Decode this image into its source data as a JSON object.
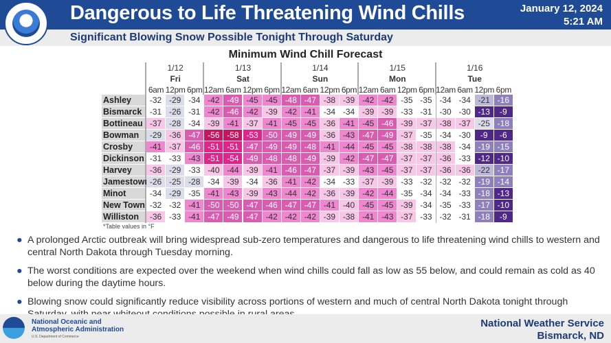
{
  "header": {
    "title": "Dangerous to Life Threatening Wind Chills",
    "date": "January 12, 2024",
    "time": "5:21 AM",
    "subtitle": "Significant Blowing Snow Possible Tonight Through Saturday",
    "logo_text": "NATIONAL WEATHER SERVICE"
  },
  "table": {
    "title": "Minimum Wind Chill Forecast",
    "days": [
      {
        "date": "1/12",
        "day": "Fri",
        "times": [
          "6am",
          "12pm",
          "6pm"
        ]
      },
      {
        "date": "1/13",
        "day": "Sat",
        "times": [
          "12am",
          "6am",
          "12pm",
          "6pm"
        ]
      },
      {
        "date": "1/14",
        "day": "Sun",
        "times": [
          "12am",
          "6am",
          "12pm",
          "6pm"
        ]
      },
      {
        "date": "1/15",
        "day": "Mon",
        "times": [
          "12am",
          "6am",
          "12pm",
          "6pm"
        ]
      },
      {
        "date": "1/16",
        "day": "Tue",
        "times": [
          "12am",
          "6am",
          "12pm",
          "6pm"
        ]
      }
    ],
    "rows": [
      {
        "name": "Ashley",
        "values": [
          -32,
          -29,
          -34,
          -42,
          -49,
          -45,
          -45,
          -48,
          -47,
          -38,
          -39,
          -42,
          -42,
          -35,
          -35,
          -34,
          -34,
          -21,
          -16
        ]
      },
      {
        "name": "Bismarck",
        "values": [
          -31,
          -26,
          -31,
          -42,
          -46,
          -42,
          -39,
          -42,
          -41,
          -34,
          -34,
          -39,
          -39,
          -33,
          -31,
          -30,
          -30,
          -13,
          -9
        ]
      },
      {
        "name": "Bottineau",
        "values": [
          -37,
          -28,
          -34,
          -39,
          -41,
          -37,
          -41,
          -45,
          -45,
          -36,
          -41,
          -45,
          -46,
          -39,
          -37,
          -38,
          -37,
          -25,
          -18
        ]
      },
      {
        "name": "Bowman",
        "values": [
          -29,
          -36,
          -47,
          -56,
          -58,
          -53,
          -50,
          -49,
          -49,
          -36,
          -43,
          -47,
          -49,
          -37,
          -35,
          -34,
          -30,
          -9,
          -6
        ]
      },
      {
        "name": "Crosby",
        "values": [
          -41,
          -37,
          -46,
          -51,
          -51,
          -47,
          -49,
          -49,
          -48,
          -41,
          -44,
          -45,
          -45,
          -38,
          -38,
          -38,
          -34,
          -19,
          -15
        ]
      },
      {
        "name": "Dickinson",
        "values": [
          -31,
          -33,
          -43,
          -51,
          -54,
          -49,
          -48,
          -48,
          -49,
          -39,
          -42,
          -47,
          -47,
          -37,
          -37,
          -36,
          -33,
          -12,
          -10
        ]
      },
      {
        "name": "Harvey",
        "values": [
          -36,
          -29,
          -33,
          -40,
          -44,
          -39,
          -41,
          -46,
          -47,
          -37,
          -39,
          -43,
          -45,
          -37,
          -37,
          -36,
          -36,
          -22,
          -17
        ]
      },
      {
        "name": "Jamestown",
        "values": [
          -26,
          -25,
          -28,
          -34,
          -39,
          -34,
          -36,
          -41,
          -42,
          -34,
          -33,
          -37,
          -39,
          -33,
          -32,
          -32,
          -32,
          -19,
          -14
        ]
      },
      {
        "name": "Minot",
        "values": [
          -34,
          -29,
          -35,
          -41,
          -43,
          -39,
          -43,
          -44,
          -42,
          -36,
          -39,
          -42,
          -44,
          -35,
          -34,
          -34,
          -33,
          -18,
          -13
        ]
      },
      {
        "name": "New Town",
        "values": [
          -32,
          -32,
          -41,
          -50,
          -50,
          -47,
          -46,
          -47,
          -47,
          -41,
          -40,
          -45,
          -45,
          -39,
          -34,
          -35,
          -33,
          -17,
          -10
        ]
      },
      {
        "name": "Williston",
        "values": [
          -36,
          -33,
          -41,
          -47,
          -49,
          -47,
          -42,
          -42,
          -42,
          -39,
          -38,
          -41,
          -43,
          -37,
          -33,
          -32,
          -31,
          -18,
          -9
        ]
      }
    ],
    "note": "*Table values in °F"
  },
  "bullets": [
    "A prolonged Arctic outbreak will bring widespread sub-zero temperatures and dangerous to life threatening wind chills to western and central North Dakota through Tuesday morning.",
    "The worst conditions are expected over the weekend when wind chills could fall as low as 55 below, and could remain as cold as 40 below during the daytime hours.",
    "Blowing snow could significantly reduce visibility across portions of western and much of central North Dakota tonight through Saturday, with near whiteout conditions possible in rural areas."
  ],
  "footer": {
    "noaa_line1": "National Oceanic and",
    "noaa_line2": "Atmospheric Administration",
    "noaa_line3": "U.S. Department of Commerce",
    "nws": "National Weather Service",
    "office": "Bismarck, ND"
  },
  "colors": {
    "header_blue": "#1f4a95",
    "subtitle_text": "#1d3a78"
  }
}
